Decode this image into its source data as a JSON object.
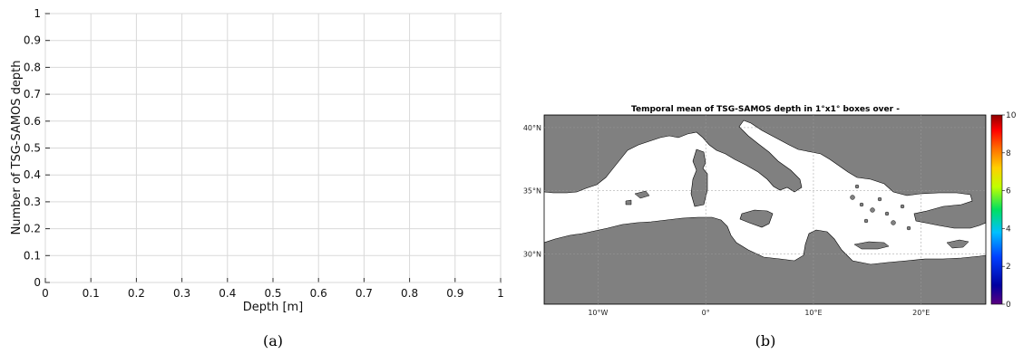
{
  "chart_data": [
    {
      "type": "line",
      "title": "",
      "xlabel": "Depth [m]",
      "ylabel": "Number of TSG-SAMOS depth",
      "xlim": [
        0,
        1
      ],
      "ylim": [
        0,
        1
      ],
      "xticks": [
        "0",
        "0.1",
        "0.2",
        "0.3",
        "0.4",
        "0.5",
        "0.6",
        "0.7",
        "0.8",
        "0.9",
        "1"
      ],
      "yticks": [
        "0",
        "0.1",
        "0.2",
        "0.3",
        "0.4",
        "0.5",
        "0.6",
        "0.7",
        "0.8",
        "0.9",
        "1"
      ],
      "grid": true,
      "series": [],
      "caption": "(a)"
    },
    {
      "type": "heatmap",
      "title": "Temporal mean of TSG-SAMOS depth in 1°x1° boxes over -",
      "lon_range": [
        -15,
        26
      ],
      "lat_range": [
        26,
        41
      ],
      "lon_ticks": [
        "10°W",
        "0°",
        "10°E",
        "20°E"
      ],
      "lat_ticks": [
        "40°N",
        "35°N",
        "30°N"
      ],
      "colorbar": {
        "min": 0,
        "max": 10,
        "ticks": [
          "0",
          "2",
          "4",
          "6",
          "8",
          "10"
        ],
        "colormap": "jet"
      },
      "land_color": "#808080",
      "sea_color": "#ffffff",
      "caption": "(b)"
    }
  ]
}
